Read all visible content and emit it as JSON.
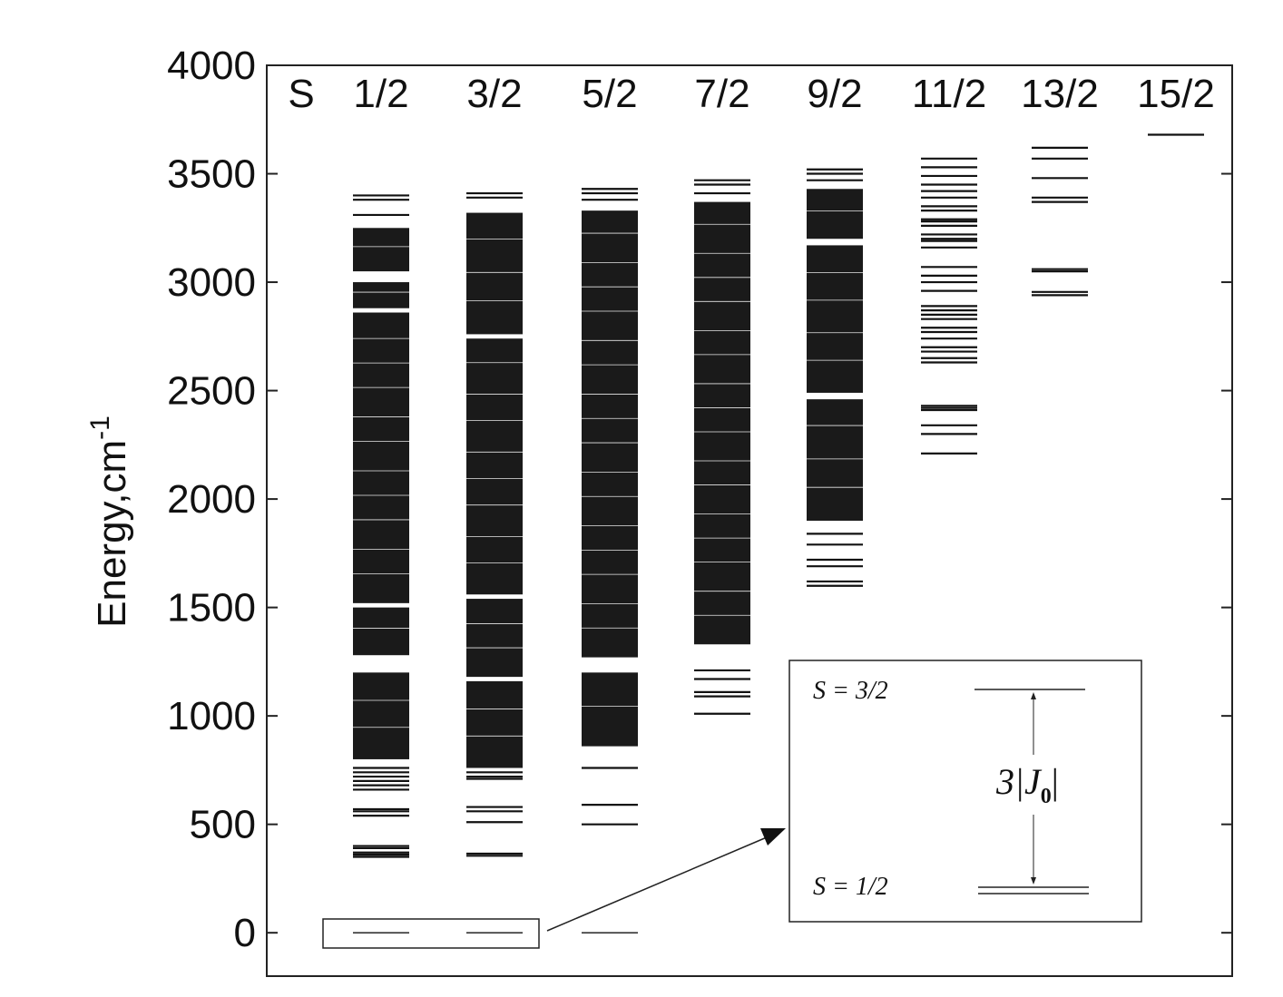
{
  "chart_data": {
    "type": "energy-level-diagram",
    "title": "",
    "xlabel": "",
    "ylabel": "Energy,cm",
    "ylabel_superscript": "-1",
    "ylim": [
      -200,
      4000
    ],
    "yticks": [
      0,
      500,
      1000,
      1500,
      2000,
      2500,
      3000,
      3500,
      4000
    ],
    "ytick_labels": [
      "0",
      "500",
      "1000",
      "1500",
      "2000",
      "2500",
      "3000",
      "3500",
      "4000"
    ],
    "grid": false,
    "column_header_label": "S",
    "columns": [
      {
        "label": "1/2",
        "ground_levels": [
          0
        ],
        "levels": [
          350,
          360,
          370,
          390,
          400,
          540,
          560,
          570,
          660,
          680,
          700,
          720,
          740,
          760
        ],
        "dense_bands": [
          [
            800,
            1200
          ],
          [
            1280,
            1500
          ],
          [
            1520,
            2860
          ],
          [
            2880,
            3000
          ],
          [
            3050,
            3250
          ]
        ],
        "top_levels": [
          3310,
          3380,
          3400
        ]
      },
      {
        "label": "3/2",
        "ground_levels": [
          0
        ],
        "levels": [
          355,
          365,
          510,
          560,
          580,
          710,
          720,
          740
        ],
        "dense_bands": [
          [
            760,
            1160
          ],
          [
            1180,
            1540
          ],
          [
            1560,
            2740
          ],
          [
            2760,
            3320
          ]
        ],
        "top_levels": [
          3390,
          3410
        ]
      },
      {
        "label": "5/2",
        "ground_levels": [
          0
        ],
        "levels": [
          500,
          590,
          760
        ],
        "dense_bands": [
          [
            860,
            1200
          ],
          [
            1270,
            3330
          ]
        ],
        "top_levels": [
          3380,
          3410,
          3430
        ]
      },
      {
        "label": "7/2",
        "ground_levels": [],
        "levels": [
          1010,
          1090,
          1110,
          1170,
          1210
        ],
        "dense_bands": [
          [
            1330,
            3370
          ]
        ],
        "top_levels": [
          3410,
          3450,
          3470
        ]
      },
      {
        "label": "9/2",
        "ground_levels": [],
        "levels": [
          1600,
          1620,
          1690,
          1720,
          1790,
          1840
        ],
        "dense_bands": [
          [
            1900,
            2460
          ],
          [
            2490,
            3170
          ],
          [
            3200,
            3430
          ]
        ],
        "top_levels": [
          3470,
          3500,
          3520
        ]
      },
      {
        "label": "11/2",
        "ground_levels": [],
        "levels": [
          2210,
          2300,
          2340,
          2410,
          2420,
          2430,
          2630,
          2650,
          2680,
          2700,
          2740,
          2770,
          2790,
          2830,
          2850,
          2870,
          2890,
          2960,
          3000,
          3030,
          3070,
          3160,
          3190,
          3200,
          3220,
          3260,
          3280,
          3290,
          3330,
          3350,
          3390,
          3420,
          3450,
          3490,
          3530,
          3570
        ],
        "dense_bands": [],
        "top_levels": []
      },
      {
        "label": "13/2",
        "ground_levels": [],
        "levels": [
          2940,
          2955,
          3050,
          3060,
          3370,
          3390,
          3480,
          3570,
          3620
        ],
        "dense_bands": [],
        "top_levels": []
      },
      {
        "label": "15/2",
        "ground_levels": [],
        "levels": [
          3680
        ],
        "dense_bands": [],
        "top_levels": []
      }
    ],
    "inset": {
      "upper_label": "S = 3/2",
      "lower_label": "S = 1/2",
      "gap_label": "3|J",
      "gap_label_subscript": "0",
      "gap_label_suffix": "|"
    }
  }
}
